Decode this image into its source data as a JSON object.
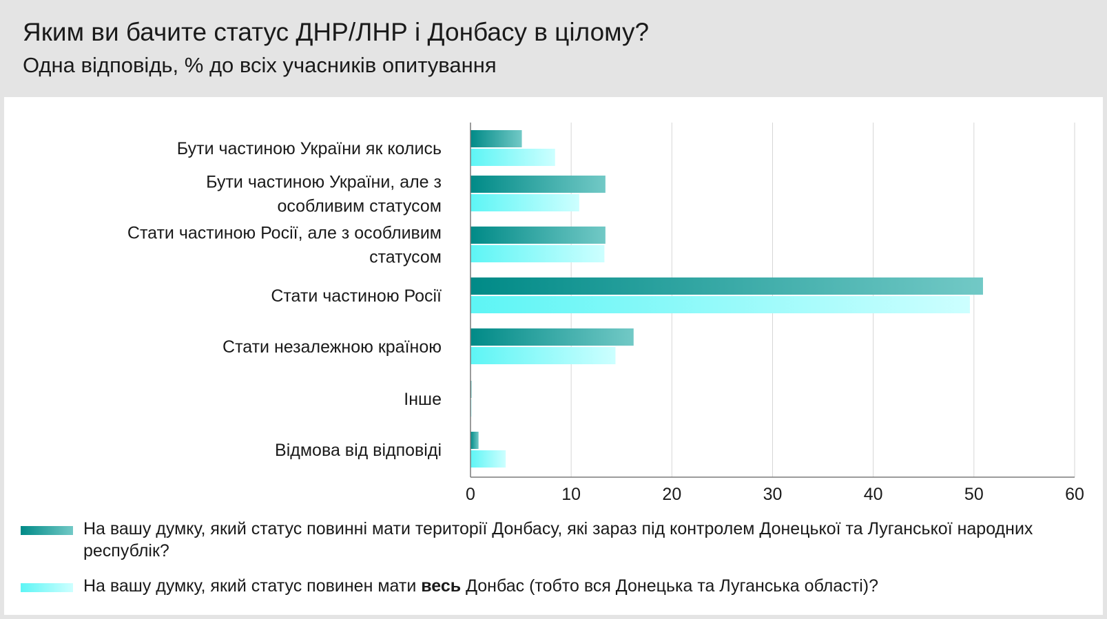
{
  "title": "Яким ви бачите статус ДНР/ЛНР і Донбасу в цілому?",
  "subtitle": "Одна відповідь, % до всіх учасників опитування",
  "colors": {
    "series1_start": "#008a87",
    "series1_end": "#72c9c6",
    "series2_start": "#5df5f5",
    "series2_end": "#cdffff",
    "gridline": "#d6d6d6",
    "axis": "#7a7a7a"
  },
  "chart_data": {
    "type": "bar",
    "orientation": "horizontal",
    "categories": [
      [
        "Бути частиною України як колись"
      ],
      [
        "Бути частиною України, але з",
        "особливим статусом"
      ],
      [
        "Стати частиною Росії, але з особливим",
        "статусом"
      ],
      [
        "Стати частиною Росії"
      ],
      [
        "Стати незалежною країною"
      ],
      [
        "Інше"
      ],
      [
        "Відмова від відповіді"
      ]
    ],
    "series": [
      {
        "values": [
          5.1,
          13.4,
          13.4,
          50.9,
          16.2,
          0.1,
          0.8
        ]
      },
      {
        "values": [
          8.4,
          10.8,
          13.3,
          49.6,
          14.4,
          0.1,
          3.5
        ]
      }
    ],
    "xlim": [
      0,
      60
    ],
    "xticks": [
      "0",
      "10",
      "20",
      "30",
      "40",
      "50",
      "60"
    ],
    "grid": true
  },
  "legend": {
    "item1": "На вашу думку, який статус повинні мати території Донбасу, які зараз під контролем Донецької та Луганської народних республік?",
    "item2_before": "На вашу думку, який статус повинен мати ",
    "item2_bold": "весь",
    "item2_after": " Донбас (тобто вся Донецька та Луганська області)?"
  }
}
